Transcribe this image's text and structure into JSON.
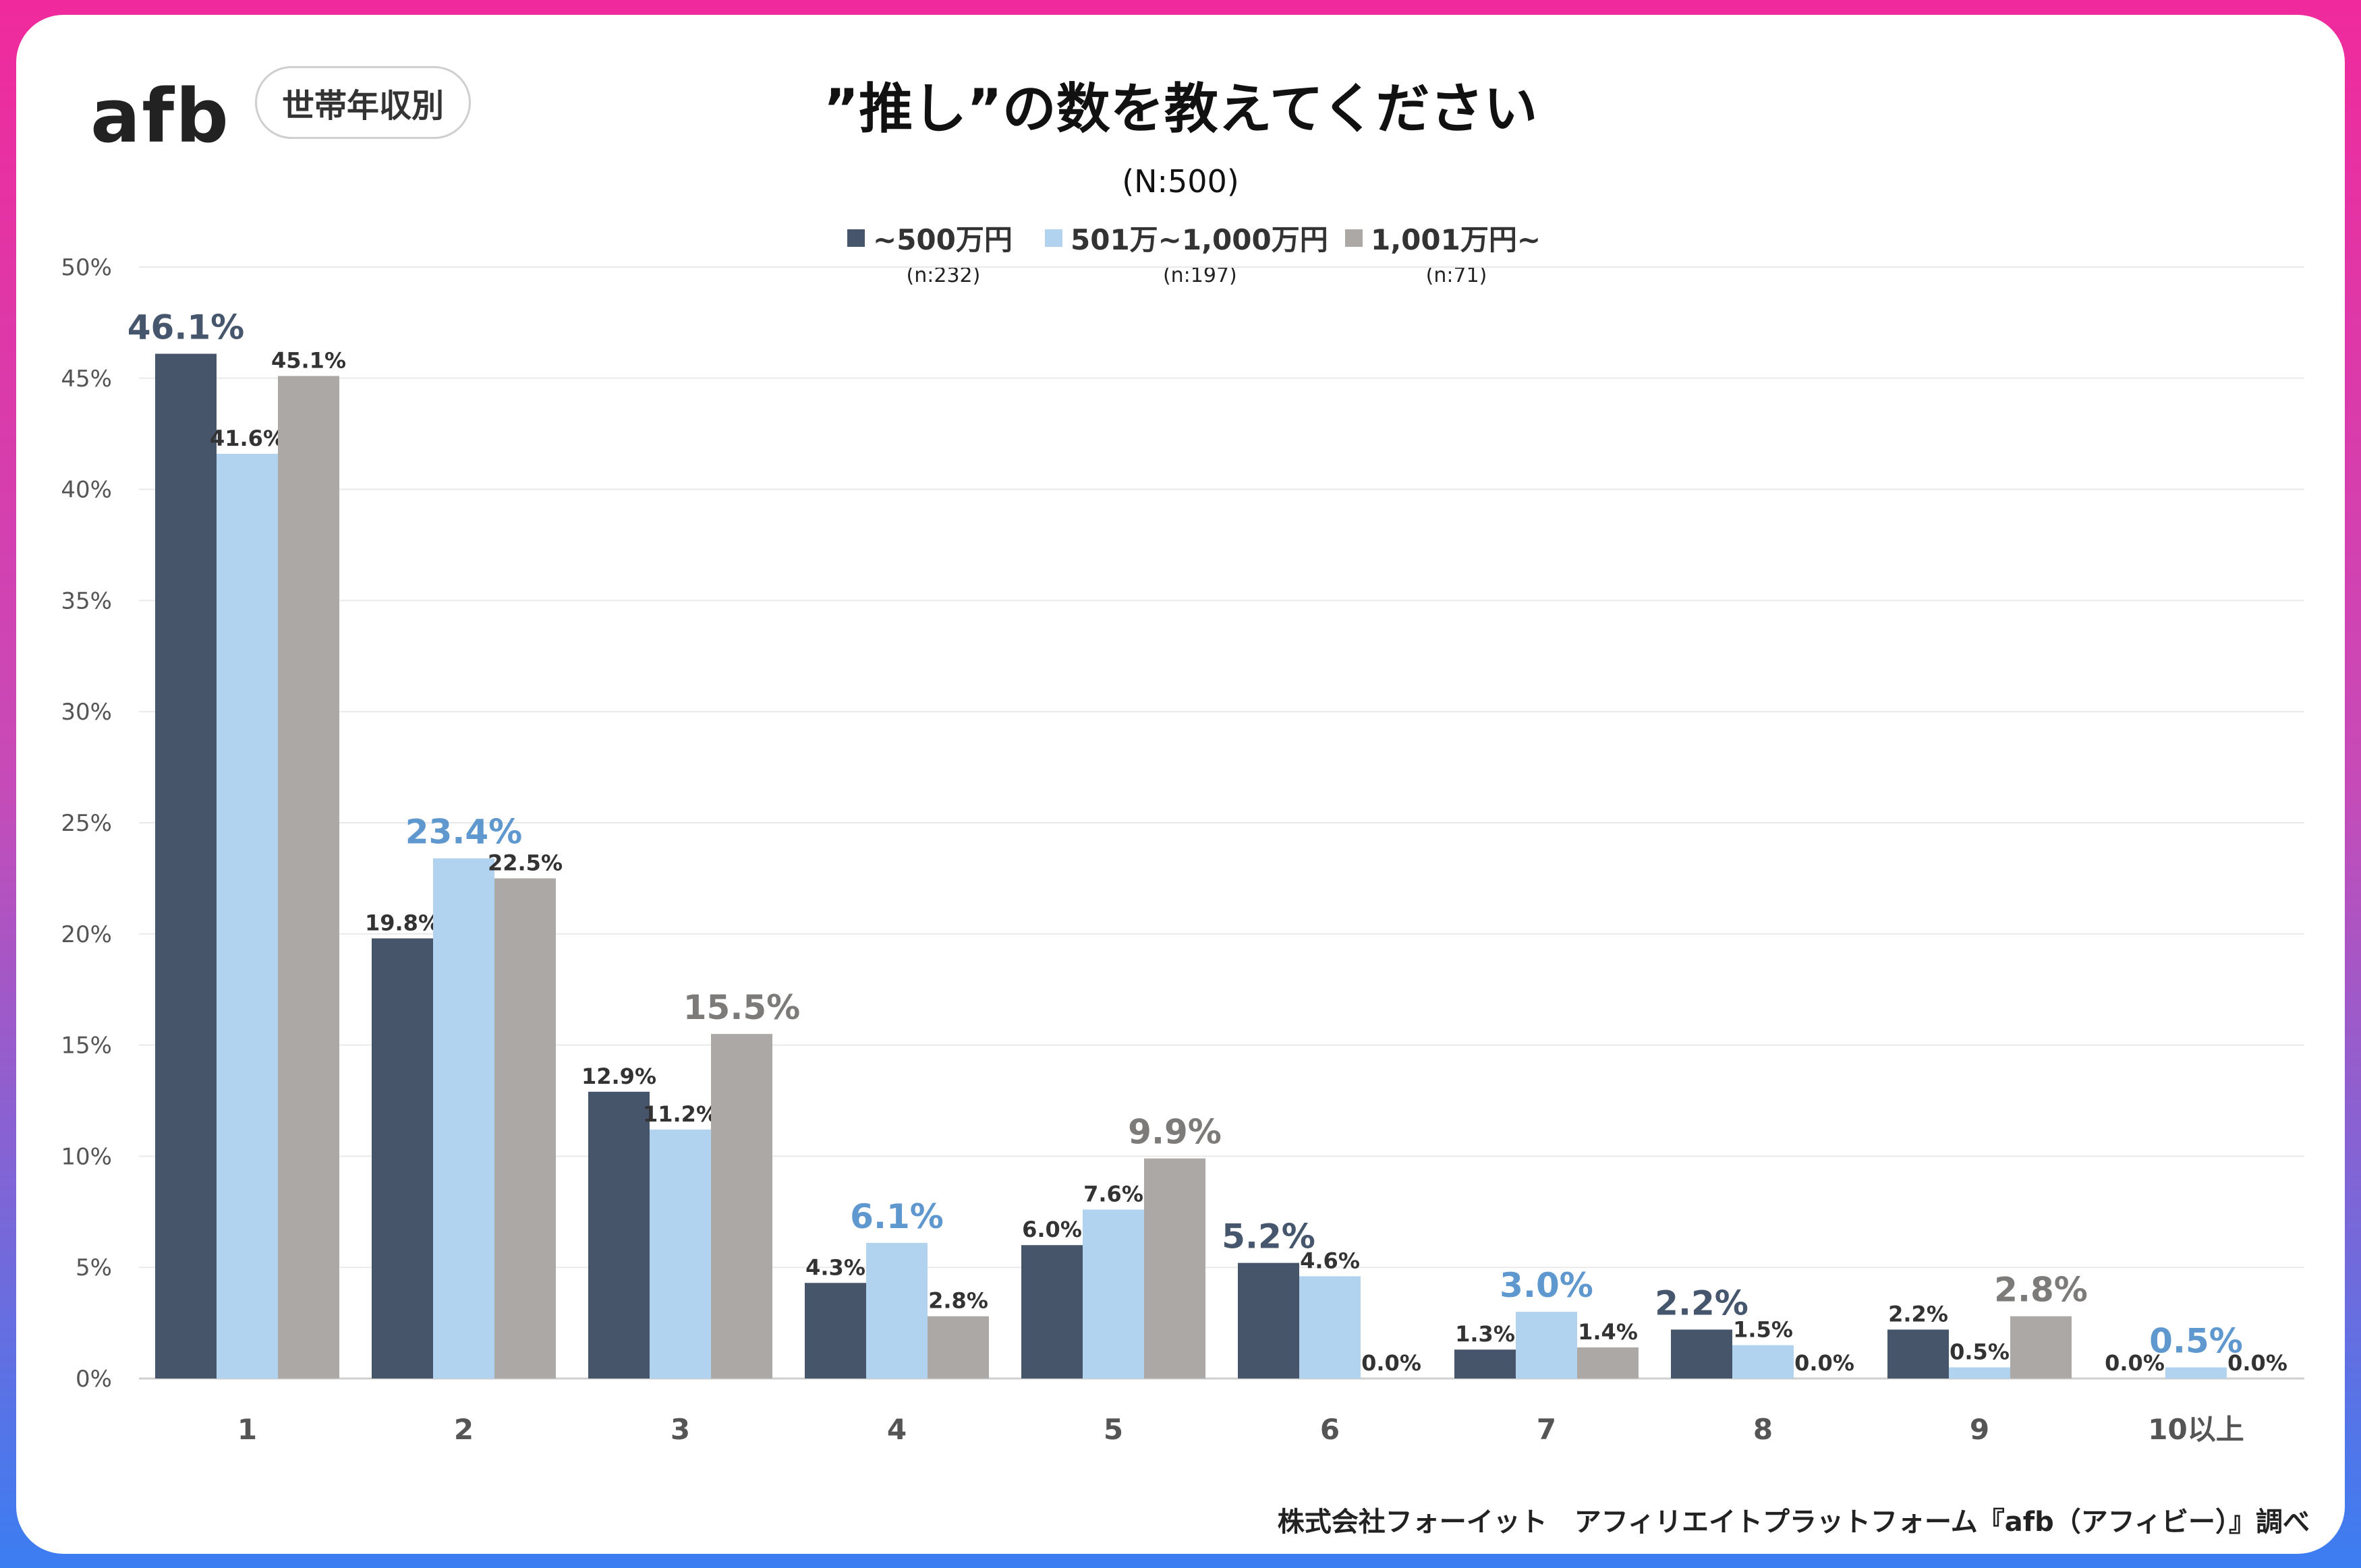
{
  "header": {
    "logo_text": "afb",
    "badge": "世帯年収別",
    "title": "”推し”の数を教えてください",
    "subtitle": "(N:500)"
  },
  "legend": [
    {
      "label": "~500万円",
      "n": "(n:232)",
      "color": "#465569"
    },
    {
      "label": "501万~1,000万円",
      "n": "(n:197)",
      "color": "#b1d3ef"
    },
    {
      "label": "1,001万円~",
      "n": "(n:71)",
      "color": "#aca8a5"
    }
  ],
  "footer": "株式会社フォーイット　アフィリエイトプラットフォーム『afb（アフィビー）』調べ",
  "chart_data": {
    "type": "bar",
    "title": "”推し”の数を教えてください",
    "subtitle": "(N:500)",
    "categories": [
      "1",
      "2",
      "3",
      "4",
      "5",
      "6",
      "7",
      "8",
      "9",
      "10以上"
    ],
    "series": [
      {
        "name": "~500万円",
        "n": "(n:232)",
        "color": "#465569",
        "values": [
          46.1,
          19.8,
          12.9,
          4.3,
          6.0,
          5.2,
          1.3,
          2.2,
          2.2,
          0.0
        ]
      },
      {
        "name": "501万~1,000万円",
        "n": "(n:197)",
        "color": "#b1d3ef",
        "values": [
          41.6,
          23.4,
          11.2,
          6.1,
          7.6,
          4.6,
          3.0,
          1.5,
          0.5,
          0.5
        ]
      },
      {
        "name": "1,001万円~",
        "n": "(n:71)",
        "color": "#aca8a5",
        "values": [
          45.1,
          22.5,
          15.5,
          2.8,
          9.9,
          0.0,
          1.4,
          0.0,
          2.8,
          0.0
        ]
      }
    ],
    "highlight_colors": [
      "#46566d",
      "#5f98cf",
      "#7d7b79"
    ],
    "ylim": [
      0,
      50
    ],
    "yticks": [
      0,
      5,
      10,
      15,
      20,
      25,
      30,
      35,
      40,
      45,
      50
    ],
    "ytick_labels": [
      "0%",
      "5%",
      "10%",
      "15%",
      "20%",
      "25%",
      "30%",
      "35%",
      "40%",
      "45%",
      "50%"
    ],
    "value_suffix": "%",
    "grid": true,
    "legend_position": "top-center"
  }
}
